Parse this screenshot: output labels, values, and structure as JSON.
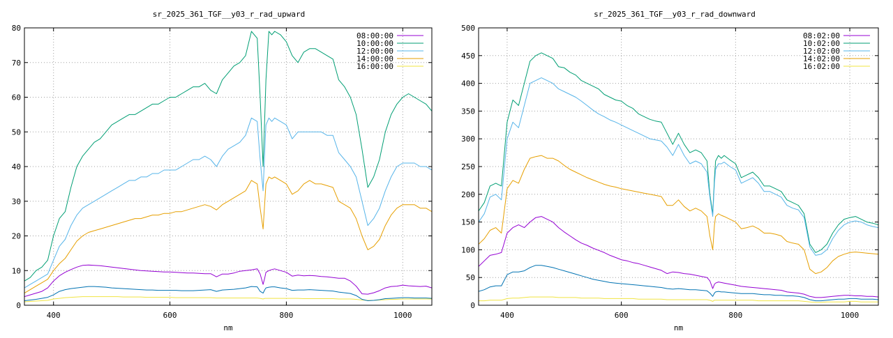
{
  "chart_data": [
    {
      "type": "line",
      "title": "sr_2025_361_TGF__y03_r_rad_upward",
      "xlabel": "nm",
      "ylabel": "",
      "xlim": [
        350,
        1050
      ],
      "ylim": [
        0,
        80
      ],
      "xticks": [
        400,
        600,
        800,
        1000
      ],
      "yticks": [
        0,
        10,
        20,
        30,
        40,
        50,
        60,
        70,
        80
      ],
      "grid": true,
      "legend_position": "top-right",
      "x": [
        350,
        360,
        370,
        380,
        390,
        400,
        410,
        420,
        430,
        440,
        450,
        460,
        470,
        480,
        490,
        500,
        510,
        520,
        530,
        540,
        550,
        560,
        570,
        580,
        590,
        600,
        610,
        620,
        630,
        640,
        650,
        660,
        670,
        680,
        690,
        700,
        710,
        720,
        730,
        740,
        750,
        755,
        760,
        763,
        765,
        770,
        775,
        780,
        790,
        800,
        810,
        820,
        830,
        840,
        850,
        860,
        870,
        880,
        890,
        900,
        910,
        920,
        930,
        940,
        950,
        960,
        970,
        980,
        990,
        1000,
        1010,
        1020,
        1030,
        1040,
        1050
      ],
      "series": [
        {
          "name": "08:00:00",
          "color": "#9400d3",
          "values": [
            2.5,
            3,
            3.5,
            4,
            5,
            7,
            8.5,
            9.5,
            10.3,
            11,
            11.5,
            11.6,
            11.5,
            11.4,
            11.2,
            11,
            10.8,
            10.6,
            10.4,
            10.2,
            10,
            9.9,
            9.8,
            9.7,
            9.6,
            9.6,
            9.5,
            9.4,
            9.3,
            9.3,
            9.2,
            9.1,
            9.1,
            8.2,
            9,
            9,
            9.3,
            9.8,
            10,
            10.2,
            10.5,
            9,
            6,
            8,
            9.5,
            10,
            10.3,
            10.5,
            10,
            9.5,
            8.4,
            8.7,
            8.5,
            8.6,
            8.5,
            8.3,
            8.2,
            8,
            7.8,
            7.8,
            7,
            5.5,
            3.3,
            3.2,
            3.6,
            4.2,
            5,
            5.4,
            5.5,
            5.8,
            5.6,
            5.5,
            5.4,
            5.5,
            5
          ]
        },
        {
          "name": "10:00:00",
          "color": "#009e73",
          "values": [
            7,
            8,
            10,
            11,
            13,
            20,
            25,
            27,
            34,
            40,
            43,
            45,
            47,
            48,
            50,
            52,
            53,
            54,
            55,
            55,
            56,
            57,
            58,
            58,
            59,
            60,
            60,
            61,
            62,
            63,
            63,
            64,
            62,
            61,
            65,
            67,
            69,
            70,
            72,
            79,
            77,
            60,
            40,
            55,
            65,
            79,
            78,
            79,
            78,
            76,
            72,
            70,
            73,
            74,
            74,
            73,
            72,
            71,
            65,
            63,
            60,
            55,
            45,
            34,
            37,
            42,
            50,
            55,
            58,
            60,
            61,
            60,
            59,
            58,
            56
          ]
        },
        {
          "name": "12:00:00",
          "color": "#56b4e9",
          "values": [
            5,
            6,
            7,
            8,
            9,
            13,
            17,
            19,
            23,
            26,
            28,
            29,
            30,
            31,
            32,
            33,
            34,
            35,
            36,
            36,
            37,
            37,
            38,
            38,
            39,
            39,
            39,
            40,
            41,
            42,
            42,
            43,
            42,
            40,
            43,
            45,
            46,
            47,
            49,
            54,
            53,
            42,
            33,
            45,
            52,
            54,
            53,
            54,
            53,
            52,
            48,
            50,
            50,
            50,
            50,
            50,
            49,
            49,
            44,
            42,
            40,
            37,
            30,
            23,
            25,
            28,
            33,
            37,
            40,
            41,
            41,
            41,
            40,
            40,
            39
          ]
        },
        {
          "name": "14:00:00",
          "color": "#e69f00",
          "values": [
            3.5,
            4.5,
            5.5,
            6.5,
            7.5,
            10,
            12,
            13.5,
            16,
            18.5,
            20,
            21,
            21.5,
            22,
            22.5,
            23,
            23.5,
            24,
            24.5,
            25,
            25,
            25.5,
            26,
            26,
            26.5,
            26.5,
            27,
            27,
            27.5,
            28,
            28.5,
            29,
            28.5,
            27.5,
            29,
            30,
            31,
            32,
            33,
            36,
            35,
            28,
            22,
            30,
            35,
            37,
            36.5,
            37,
            36,
            35,
            32,
            33,
            35,
            36,
            35,
            35,
            34.5,
            34,
            30,
            29,
            28,
            25,
            20,
            16,
            17,
            19,
            23,
            26,
            28,
            29,
            29,
            29,
            28,
            28,
            27
          ]
        },
        {
          "name": "16:00:00",
          "color": "#f0e442",
          "values": [
            1,
            1.1,
            1.2,
            1.3,
            1.4,
            1.8,
            2,
            2.2,
            2.3,
            2.4,
            2.5,
            2.5,
            2.5,
            2.5,
            2.5,
            2.5,
            2.5,
            2.4,
            2.4,
            2.4,
            2.4,
            2.3,
            2.3,
            2.3,
            2.3,
            2.3,
            2.2,
            2.2,
            2.2,
            2.2,
            2.2,
            2.2,
            2.2,
            2.1,
            2.1,
            2.1,
            2.1,
            2.1,
            2.1,
            2.1,
            2.1,
            2,
            1.8,
            2,
            2,
            2,
            2,
            2,
            2,
            2,
            2,
            2,
            1.9,
            1.9,
            1.9,
            1.9,
            1.9,
            1.9,
            1.8,
            1.8,
            1.8,
            1.7,
            1.5,
            1.4,
            1.4,
            1.5,
            1.6,
            1.7,
            1.7,
            1.8,
            1.8,
            1.8,
            1.8,
            1.8,
            1.8
          ]
        },
        {
          "name": "",
          "color": "#0072b2",
          "values": [
            1.3,
            1.5,
            1.7,
            2,
            2.3,
            3,
            4,
            4.5,
            4.8,
            5,
            5.2,
            5.4,
            5.4,
            5.3,
            5.2,
            5,
            4.9,
            4.8,
            4.7,
            4.6,
            4.5,
            4.4,
            4.4,
            4.3,
            4.3,
            4.3,
            4.3,
            4.2,
            4.2,
            4.2,
            4.3,
            4.4,
            4.5,
            4,
            4.4,
            4.5,
            4.6,
            4.8,
            5,
            5.4,
            5.3,
            4,
            3.5,
            4.5,
            5,
            5.2,
            5.3,
            5.3,
            5,
            4.8,
            4.3,
            4.4,
            4.4,
            4.5,
            4.4,
            4.3,
            4.2,
            4.1,
            3.8,
            3.6,
            3.4,
            2.8,
            1.7,
            1.3,
            1.4,
            1.6,
            1.9,
            2,
            2.1,
            2.2,
            2.2,
            2.1,
            2.1,
            2.1,
            2
          ]
        }
      ]
    },
    {
      "type": "line",
      "title": "sr_2025_361_TGF__y03_r_rad_downward",
      "xlabel": "nm",
      "ylabel": "",
      "xlim": [
        350,
        1050
      ],
      "ylim": [
        0,
        500
      ],
      "xticks": [
        400,
        600,
        800,
        1000
      ],
      "yticks": [
        0,
        50,
        100,
        150,
        200,
        250,
        300,
        350,
        400,
        450,
        500
      ],
      "grid": true,
      "legend_position": "top-right",
      "x": [
        350,
        360,
        370,
        380,
        390,
        400,
        410,
        420,
        430,
        440,
        450,
        460,
        470,
        480,
        490,
        500,
        510,
        520,
        530,
        540,
        550,
        560,
        570,
        580,
        590,
        600,
        610,
        620,
        630,
        640,
        650,
        660,
        670,
        680,
        690,
        700,
        710,
        720,
        730,
        740,
        750,
        755,
        760,
        763,
        765,
        770,
        775,
        780,
        790,
        800,
        810,
        820,
        830,
        840,
        850,
        860,
        870,
        880,
        890,
        900,
        910,
        920,
        930,
        940,
        950,
        960,
        970,
        980,
        990,
        1000,
        1010,
        1020,
        1030,
        1040,
        1050
      ],
      "series": [
        {
          "name": "08:02:00",
          "color": "#9400d3",
          "values": [
            70,
            80,
            90,
            92,
            95,
            130,
            140,
            145,
            140,
            150,
            158,
            160,
            155,
            150,
            140,
            132,
            125,
            118,
            112,
            108,
            103,
            99,
            95,
            90,
            86,
            82,
            80,
            77,
            75,
            72,
            69,
            66,
            63,
            57,
            60,
            59,
            57,
            56,
            54,
            52,
            50,
            44,
            30,
            38,
            40,
            42,
            41,
            40,
            38,
            36,
            34,
            33,
            32,
            31,
            30,
            29,
            28,
            27,
            24,
            23,
            22,
            20,
            16,
            14,
            14,
            15,
            16,
            17,
            18,
            18,
            17,
            17,
            16,
            16,
            15
          ]
        },
        {
          "name": "10:02:00",
          "color": "#009e73",
          "values": [
            170,
            185,
            215,
            220,
            215,
            330,
            370,
            360,
            400,
            440,
            450,
            455,
            450,
            445,
            430,
            428,
            420,
            415,
            405,
            400,
            395,
            390,
            380,
            375,
            370,
            368,
            360,
            355,
            345,
            340,
            335,
            332,
            330,
            310,
            290,
            310,
            290,
            275,
            280,
            275,
            260,
            200,
            165,
            230,
            260,
            270,
            265,
            270,
            262,
            255,
            230,
            235,
            240,
            230,
            215,
            215,
            210,
            205,
            190,
            185,
            180,
            165,
            110,
            95,
            100,
            110,
            130,
            145,
            155,
            158,
            160,
            155,
            150,
            148,
            145
          ]
        },
        {
          "name": "12:02:00",
          "color": "#56b4e9",
          "values": [
            150,
            165,
            195,
            200,
            190,
            300,
            330,
            320,
            360,
            400,
            405,
            410,
            405,
            400,
            390,
            385,
            380,
            375,
            368,
            360,
            352,
            345,
            340,
            334,
            330,
            325,
            320,
            315,
            310,
            305,
            300,
            298,
            296,
            285,
            270,
            290,
            270,
            255,
            260,
            255,
            240,
            195,
            160,
            220,
            245,
            255,
            255,
            258,
            250,
            244,
            220,
            225,
            230,
            220,
            205,
            205,
            200,
            195,
            180,
            175,
            172,
            158,
            105,
            90,
            92,
            100,
            120,
            135,
            145,
            150,
            152,
            150,
            145,
            142,
            140
          ]
        },
        {
          "name": "14:02:00",
          "color": "#e69f00",
          "values": [
            110,
            120,
            135,
            140,
            130,
            210,
            225,
            220,
            245,
            265,
            268,
            270,
            265,
            265,
            260,
            252,
            245,
            240,
            235,
            230,
            226,
            222,
            218,
            215,
            213,
            210,
            208,
            206,
            204,
            202,
            200,
            198,
            196,
            180,
            180,
            190,
            178,
            170,
            175,
            170,
            160,
            125,
            100,
            145,
            160,
            165,
            162,
            160,
            155,
            150,
            138,
            140,
            143,
            138,
            130,
            130,
            128,
            125,
            115,
            112,
            110,
            100,
            65,
            57,
            60,
            68,
            80,
            88,
            92,
            95,
            96,
            95,
            94,
            93,
            92
          ]
        },
        {
          "name": "16:02:00",
          "color": "#f0e442",
          "values": [
            8,
            8,
            9,
            9,
            9,
            12,
            13,
            13,
            14,
            15,
            15,
            15,
            15,
            15,
            14,
            14,
            14,
            14,
            13,
            13,
            13,
            13,
            12,
            12,
            12,
            12,
            12,
            12,
            11,
            11,
            11,
            11,
            11,
            10,
            10,
            10,
            10,
            10,
            10,
            10,
            10,
            9,
            7,
            9,
            9,
            9,
            9,
            9,
            9,
            9,
            9,
            9,
            9,
            8,
            8,
            8,
            8,
            8,
            8,
            8,
            8,
            7,
            6,
            5,
            5,
            6,
            6,
            6,
            6,
            7,
            7,
            6,
            6,
            6,
            6
          ]
        },
        {
          "name": "",
          "color": "#0072b2",
          "values": [
            25,
            28,
            33,
            35,
            35,
            55,
            60,
            60,
            62,
            68,
            72,
            72,
            70,
            68,
            65,
            62,
            59,
            56,
            53,
            50,
            47,
            45,
            43,
            41,
            40,
            39,
            38,
            37,
            36,
            35,
            34,
            33,
            32,
            30,
            29,
            30,
            29,
            28,
            28,
            27,
            26,
            22,
            16,
            22,
            24,
            25,
            24,
            24,
            23,
            22,
            21,
            21,
            21,
            20,
            19,
            19,
            18,
            18,
            17,
            17,
            16,
            14,
            10,
            8,
            8,
            9,
            10,
            11,
            11,
            12,
            12,
            11,
            11,
            11,
            10
          ]
        }
      ]
    }
  ]
}
